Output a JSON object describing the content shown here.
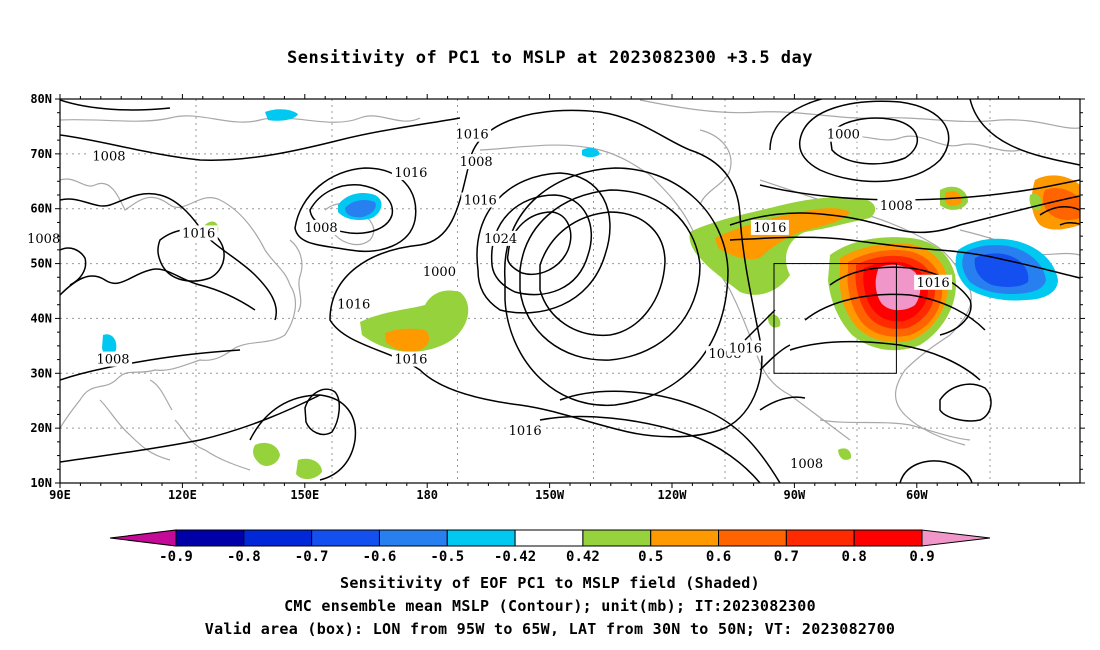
{
  "title": "Sensitivity of PC1 to MSLP at 2023082300 +3.5 day",
  "lat_labels": [
    "80N",
    "70N",
    "60N",
    "50N",
    "40N",
    "30N",
    "20N",
    "10N"
  ],
  "lon_labels": [
    "90E",
    "120E",
    "150E",
    "180",
    "150W",
    "120W",
    "90W",
    "60W"
  ],
  "contour_labels": [
    {
      "text": "1016",
      "lon": 191,
      "lat": 73.5
    },
    {
      "text": "1008",
      "lon": 102,
      "lat": 69.5
    },
    {
      "text": "1008",
      "lon": 192,
      "lat": 68.5
    },
    {
      "text": "1016",
      "lon": 176,
      "lat": 66.5
    },
    {
      "text": "1000",
      "lon": 282,
      "lat": 73.5
    },
    {
      "text": "1016",
      "lon": 193,
      "lat": 61.5
    },
    {
      "text": "1008",
      "lon": 154,
      "lat": 56.5
    },
    {
      "text": "1016",
      "lon": 264,
      "lat": 56.5
    },
    {
      "text": "1008",
      "lon": 295,
      "lat": 60.5
    },
    {
      "text": "1016",
      "lon": 124,
      "lat": 55.5
    },
    {
      "text": "1008",
      "lon": 86,
      "lat": 54.5
    },
    {
      "text": "1024",
      "lon": 198,
      "lat": 54.5
    },
    {
      "text": "1000",
      "lon": 183,
      "lat": 48.5
    },
    {
      "text": "1016",
      "lon": 304,
      "lat": 46.5
    },
    {
      "text": "1016",
      "lon": 162,
      "lat": 42.5
    },
    {
      "text": "1016",
      "lon": 176,
      "lat": 32.5
    },
    {
      "text": "1008",
      "lon": 103,
      "lat": 32.5
    },
    {
      "text": "1008",
      "lon": 253,
      "lat": 33.5
    },
    {
      "text": "1016",
      "lon": 258,
      "lat": 34.5
    },
    {
      "text": "1016",
      "lon": 204,
      "lat": 19.5
    },
    {
      "text": "1008",
      "lon": 273,
      "lat": 13.5
    }
  ],
  "valid_box": {
    "lon_min": 265,
    "lon_max": 295,
    "lat_min": 30,
    "lat_max": 50
  },
  "colorbar": {
    "labels": [
      "-0.9",
      "-0.8",
      "-0.7",
      "-0.6",
      "-0.5",
      "-0.42",
      "0.42",
      "0.5",
      "0.6",
      "0.7",
      "0.8",
      "0.9"
    ],
    "colors": [
      "#c40a96",
      "#0000a8",
      "#0028d8",
      "#1450f0",
      "#2880f0",
      "#00c8f0",
      "#ffffff",
      "#96d23c",
      "#ff9900",
      "#ff6400",
      "#ff2a00",
      "#ff0000",
      "#f096c8"
    ]
  },
  "captions": [
    "Sensitivity of EOF PC1 to MSLP field (Shaded)",
    "CMC ensemble mean MSLP (Contour); unit(mb); IT:2023082300",
    "Valid area (box): LON from 95W to 65W, LAT from 30N to 50N; VT: 2023082700"
  ],
  "colors": {
    "coast": "#a8a8a8",
    "contour": "#000000",
    "grid": "#999999"
  }
}
